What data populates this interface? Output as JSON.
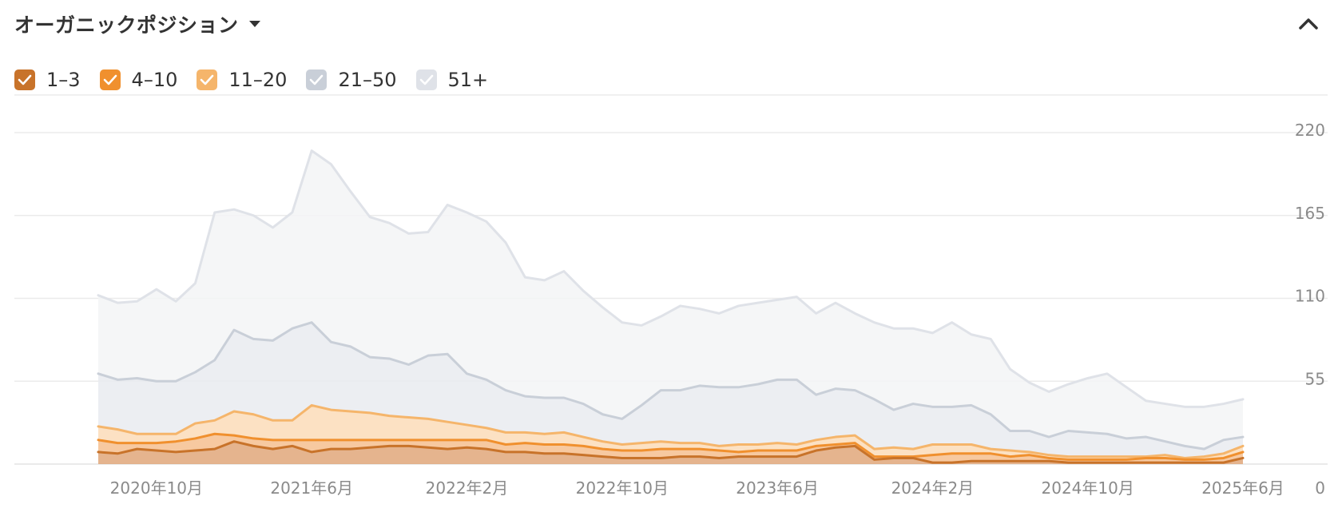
{
  "header": {
    "title": "オーガニックポジション"
  },
  "icons": {
    "dropdown": "caret-down-icon",
    "collapse": "chevron-up-icon",
    "check": "checkmark-icon"
  },
  "chart_data": {
    "type": "area",
    "stacked": true,
    "x": [
      "2020-07",
      "2020-08",
      "2020-09",
      "2020-10",
      "2020-11",
      "2020-12",
      "2021-01",
      "2021-02",
      "2021-03",
      "2021-04",
      "2021-05",
      "2021-06",
      "2021-07",
      "2021-08",
      "2021-09",
      "2021-10",
      "2021-11",
      "2021-12",
      "2022-01",
      "2022-02",
      "2022-03",
      "2022-04",
      "2022-05",
      "2022-06",
      "2022-07",
      "2022-08",
      "2022-09",
      "2022-10",
      "2022-11",
      "2022-12",
      "2023-01",
      "2023-02",
      "2023-03",
      "2023-04",
      "2023-05",
      "2023-06",
      "2023-07",
      "2023-08",
      "2023-09",
      "2023-10",
      "2023-11",
      "2023-12",
      "2024-01",
      "2024-02",
      "2024-03",
      "2024-04",
      "2024-05",
      "2024-06",
      "2024-07",
      "2024-08",
      "2024-09",
      "2024-10",
      "2024-11",
      "2024-12",
      "2025-01",
      "2025-02",
      "2025-03",
      "2025-04",
      "2025-05",
      "2025-06"
    ],
    "x_ticks": [
      {
        "x": "2020-10",
        "label": "2020年10月"
      },
      {
        "x": "2021-06",
        "label": "2021年6月"
      },
      {
        "x": "2022-02",
        "label": "2022年2月"
      },
      {
        "x": "2022-10",
        "label": "2022年10月"
      },
      {
        "x": "2023-06",
        "label": "2023年6月"
      },
      {
        "x": "2024-02",
        "label": "2024年2月"
      },
      {
        "x": "2024-10",
        "label": "2024年10月"
      },
      {
        "x": "2025-06",
        "label": "2025年6月"
      }
    ],
    "y_ticks": [
      0,
      55,
      110,
      165,
      220
    ],
    "ylim": [
      0,
      220
    ],
    "grid": true,
    "legend_position": "top-left",
    "series": [
      {
        "name": "1–3",
        "color": "#c8732a",
        "checked": true,
        "values": [
          8,
          7,
          10,
          9,
          8,
          9,
          10,
          15,
          12,
          10,
          12,
          8,
          10,
          10,
          11,
          12,
          12,
          11,
          10,
          11,
          10,
          8,
          8,
          7,
          7,
          6,
          5,
          4,
          4,
          4,
          5,
          5,
          4,
          5,
          5,
          5,
          5,
          9,
          11,
          12,
          3,
          4,
          4,
          1,
          1,
          2,
          2,
          2,
          2,
          2,
          1,
          1,
          1,
          1,
          1,
          1,
          1,
          1,
          1,
          4
        ]
      },
      {
        "name": "4–10",
        "color": "#f0902e",
        "checked": true,
        "values": [
          8,
          7,
          4,
          5,
          7,
          8,
          10,
          4,
          5,
          6,
          4,
          8,
          6,
          6,
          5,
          4,
          4,
          5,
          6,
          5,
          6,
          5,
          6,
          6,
          6,
          6,
          5,
          5,
          5,
          6,
          5,
          5,
          5,
          3,
          4,
          4,
          4,
          3,
          2,
          2,
          2,
          1,
          1,
          5,
          6,
          5,
          5,
          3,
          4,
          2,
          2,
          2,
          2,
          2,
          3,
          3,
          2,
          2,
          3,
          4
        ]
      },
      {
        "name": "11–20",
        "color": "#f5b56b",
        "checked": true,
        "values": [
          9,
          9,
          6,
          6,
          5,
          10,
          9,
          16,
          16,
          13,
          13,
          23,
          20,
          19,
          18,
          16,
          15,
          14,
          12,
          10,
          8,
          8,
          7,
          7,
          8,
          6,
          5,
          4,
          5,
          5,
          4,
          4,
          3,
          5,
          4,
          5,
          4,
          4,
          5,
          5,
          5,
          6,
          5,
          7,
          6,
          6,
          3,
          4,
          2,
          2,
          2,
          2,
          2,
          2,
          1,
          2,
          1,
          2,
          3,
          4
        ]
      },
      {
        "name": "21–50",
        "color": "#c9cfd8",
        "checked": true,
        "values": [
          35,
          33,
          37,
          35,
          35,
          34,
          40,
          54,
          50,
          53,
          61,
          55,
          45,
          43,
          37,
          38,
          35,
          42,
          45,
          34,
          32,
          28,
          24,
          24,
          23,
          22,
          18,
          17,
          25,
          34,
          35,
          38,
          39,
          38,
          40,
          42,
          43,
          30,
          32,
          30,
          33,
          25,
          30,
          25,
          25,
          26,
          23,
          13,
          14,
          12,
          17,
          16,
          15,
          12,
          13,
          9,
          8,
          5,
          9,
          6
        ]
      },
      {
        "name": "51+",
        "color": "#dfe2e8",
        "checked": true,
        "values": [
          52,
          51,
          51,
          61,
          53,
          59,
          98,
          80,
          82,
          75,
          77,
          114,
          118,
          103,
          93,
          90,
          87,
          82,
          99,
          107,
          105,
          98,
          79,
          78,
          84,
          75,
          71,
          64,
          53,
          49,
          56,
          51,
          49,
          54,
          54,
          53,
          55,
          54,
          57,
          51,
          51,
          54,
          50,
          49,
          56,
          47,
          50,
          41,
          32,
          30,
          31,
          36,
          40,
          34,
          24,
          25,
          26,
          28,
          24,
          25
        ]
      }
    ]
  }
}
